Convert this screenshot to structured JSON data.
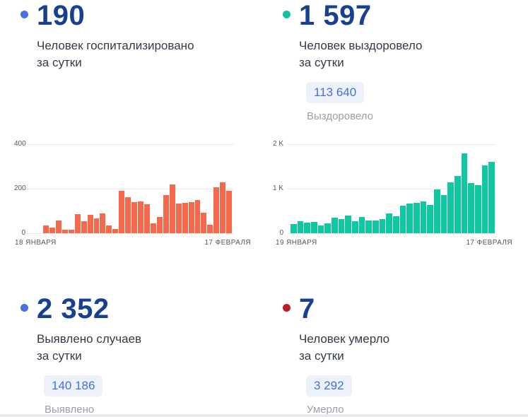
{
  "cards": {
    "hospitalized": {
      "dot_color": "#4a6fe3",
      "value": "190",
      "label_line1": "Человек госпитализировано",
      "label_line2": "за сутки"
    },
    "recovered": {
      "dot_color": "#12c49e",
      "value": "1 597",
      "label_line1": "Человек выздоровело",
      "label_line2": "за сутки",
      "total_badge": "113 640",
      "total_label": "Выздоровело"
    },
    "confirmed": {
      "dot_color": "#4a6fe3",
      "value": "2 352",
      "label_line1": "Выявлено случаев",
      "label_line2": "за сутки",
      "total_badge": "140 186",
      "total_label": "Выявлено"
    },
    "deaths": {
      "dot_color": "#bf1c27",
      "value": "7",
      "label_line1": "Человек умерло",
      "label_line2": "за сутки",
      "total_badge": "3 292",
      "total_label": "Умерло"
    }
  },
  "chart_data": [
    {
      "type": "bar",
      "name": "hospitalized-per-day",
      "title": "Человек госпитализировано за сутки",
      "bar_color": "#f4694b",
      "grid": true,
      "ylim": [
        0,
        400
      ],
      "y_ticks": [
        "400",
        "200",
        "0"
      ],
      "x_start_label": "18 ЯНВАРЯ",
      "x_end_label": "17 ФЕВРАЛЯ",
      "values": [
        35,
        27,
        57,
        17,
        17,
        85,
        55,
        83,
        67,
        88,
        35,
        20,
        192,
        163,
        140,
        143,
        130,
        44,
        73,
        172,
        218,
        132,
        136,
        140,
        148,
        92,
        37,
        207,
        228,
        190
      ]
    },
    {
      "type": "bar",
      "name": "recovered-per-day",
      "title": "Человек выздоровело за сутки",
      "bar_color": "#0dc8a0",
      "grid": true,
      "ylim": [
        0,
        2000
      ],
      "y_ticks": [
        "2 K",
        "1 K",
        "0"
      ],
      "x_start_label": "19 ЯНВАРЯ",
      "x_end_label": "17 ФЕВРАЛЯ",
      "values": [
        200,
        270,
        237,
        253,
        174,
        226,
        342,
        316,
        395,
        268,
        358,
        280,
        290,
        316,
        437,
        374,
        620,
        663,
        684,
        710,
        632,
        989,
        858,
        1147,
        1290,
        1790,
        1120,
        1079,
        1526,
        1597
      ]
    }
  ]
}
